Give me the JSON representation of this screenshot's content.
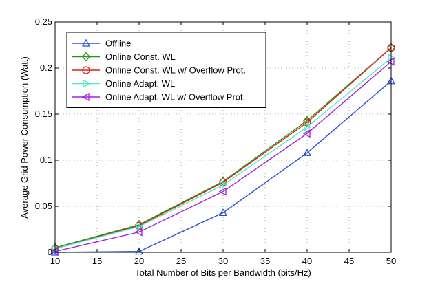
{
  "chart_data": {
    "type": "line",
    "title": "",
    "xlabel": "Total Number of Bits per Bandwidth (bits/Hz)",
    "ylabel": "Average Grid Power Consumption (Watt)",
    "xlim": [
      10,
      50
    ],
    "ylim": [
      0,
      0.25
    ],
    "x_ticks": [
      10,
      15,
      20,
      25,
      30,
      35,
      40,
      45,
      50
    ],
    "y_ticks": [
      0,
      0.05,
      0.1,
      0.15,
      0.2,
      0.25
    ],
    "x_tick_labels": [
      "10",
      "15",
      "20",
      "25",
      "30",
      "35",
      "40",
      "45",
      "50"
    ],
    "y_tick_labels": [
      "0",
      "0.05",
      "0.1",
      "0.15",
      "0.2",
      "0.25"
    ],
    "grid": true,
    "legend_position": "top-left",
    "x": [
      10,
      20,
      30,
      40,
      50
    ],
    "series": [
      {
        "name": "Offline",
        "color": "#2b4fd8",
        "marker": "triangle-up",
        "values": [
          0.0,
          0.001,
          0.043,
          0.108,
          0.186
        ]
      },
      {
        "name": "Online Const. WL",
        "color": "#1a9a1a",
        "marker": "diamond",
        "values": [
          0.005,
          0.03,
          0.077,
          0.143,
          0.222
        ]
      },
      {
        "name": "Online Const. WL w/ Overflow Prot.",
        "color": "#e0201a",
        "marker": "circle",
        "values": [
          0.004,
          0.029,
          0.076,
          0.141,
          0.222
        ]
      },
      {
        "name": "Online Adapt. WL",
        "color": "#4ee8c8",
        "marker": "triangle-right",
        "values": [
          0.004,
          0.028,
          0.073,
          0.136,
          0.211
        ]
      },
      {
        "name": "Online Adapt. WL w/ Overflow Prot.",
        "color": "#a020e0",
        "marker": "triangle-left",
        "values": [
          0.001,
          0.022,
          0.066,
          0.129,
          0.207
        ]
      }
    ]
  }
}
